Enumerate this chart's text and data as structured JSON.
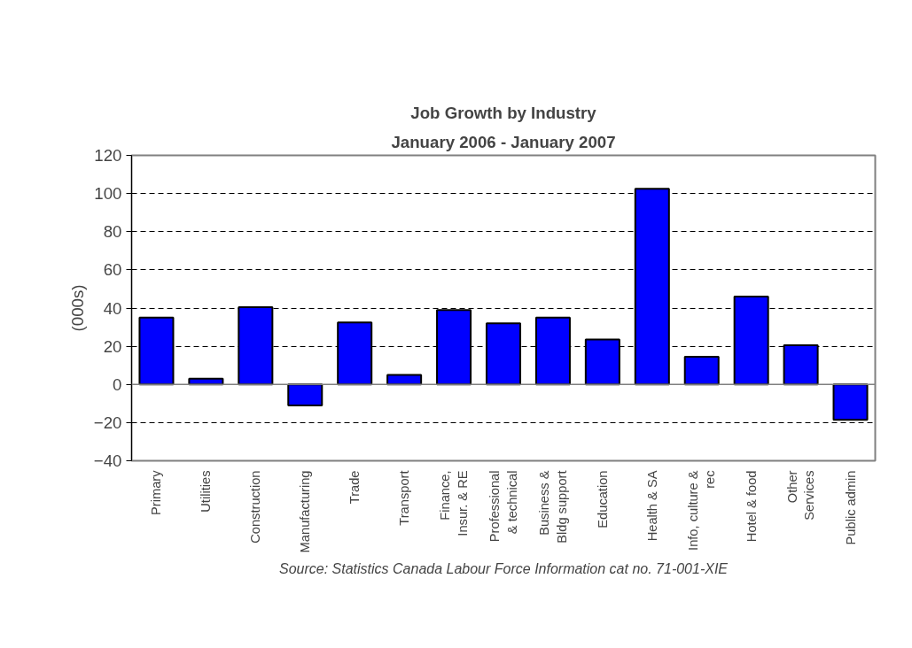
{
  "chart_data": {
    "type": "bar",
    "title": "Job Growth by Industry",
    "subtitle": "January 2006 - January 2007",
    "ylabel": "(000s)",
    "categories": [
      "Primary",
      "Utilities",
      "Construction",
      "Manufacturing",
      "Trade",
      "Transport",
      "Finance,\nInsur. & RE",
      "Professional\n& technical",
      "Business &\nBldg support",
      "Education",
      "Health & SA",
      "Info, culture &\nrec",
      "Hotel & food",
      "Other\nServices",
      "Public admin"
    ],
    "values": [
      35,
      3,
      40.5,
      -11,
      32.5,
      5,
      39,
      32,
      35,
      23.5,
      102.5,
      14.5,
      46,
      20.5,
      -18.5
    ],
    "color": "#0000ff",
    "ylim": [
      -40,
      120
    ],
    "yticks": [
      -40,
      -20,
      0,
      20,
      40,
      60,
      80,
      100,
      120
    ],
    "grid": "y",
    "annotations": [
      "Source: Statistics Canada Labour Force Information cat no. 71-001-XIE"
    ]
  }
}
